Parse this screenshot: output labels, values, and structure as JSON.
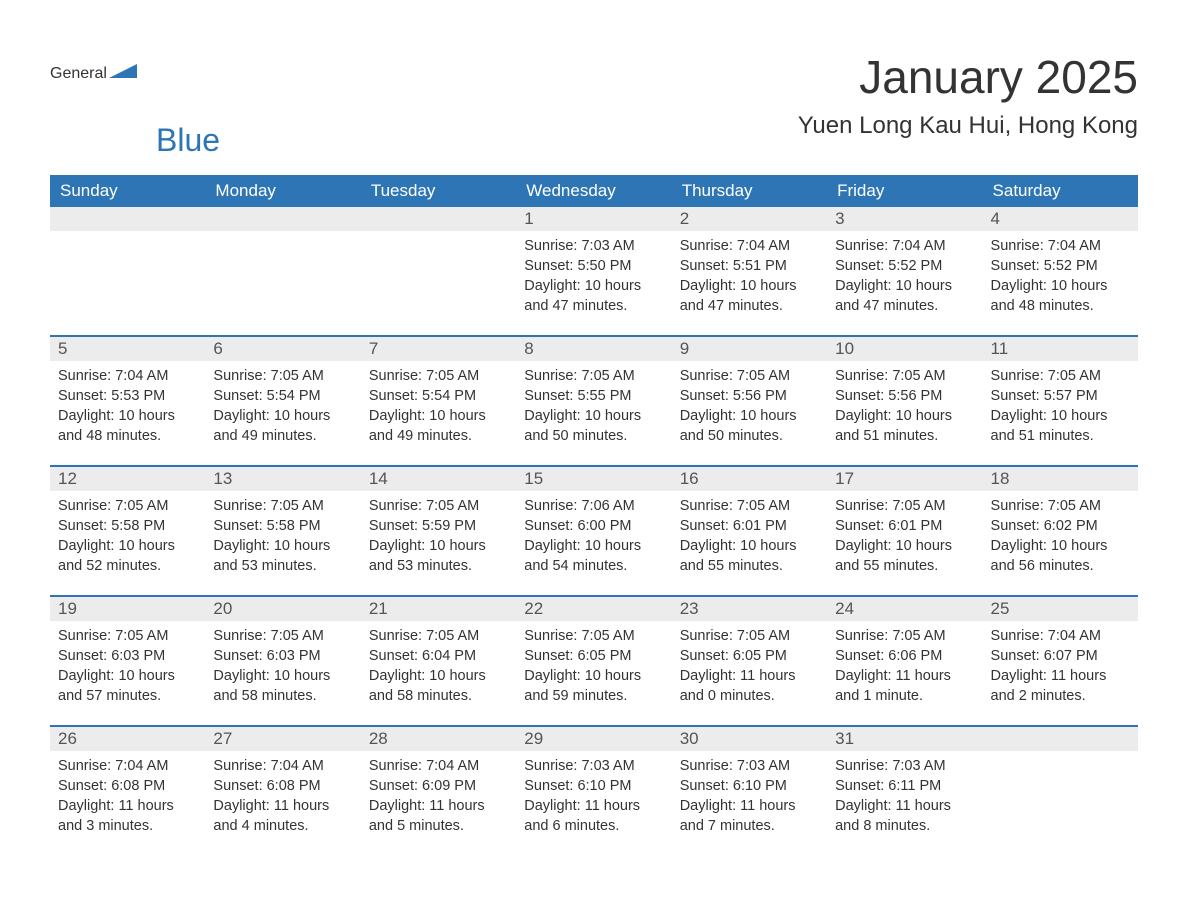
{
  "logo": {
    "general": "General",
    "blue": "Blue",
    "arrow_color": "#2e75b6"
  },
  "title": "January 2025",
  "location": "Yuen Long Kau Hui, Hong Kong",
  "colors": {
    "header_bg": "#2e75b6",
    "header_text": "#ffffff",
    "daynum_bg": "#ececec",
    "text": "#333333"
  },
  "day_headers": [
    "Sunday",
    "Monday",
    "Tuesday",
    "Wednesday",
    "Thursday",
    "Friday",
    "Saturday"
  ],
  "weeks": [
    [
      {
        "n": "",
        "sunrise": "",
        "sunset": "",
        "daylight1": "",
        "daylight2": ""
      },
      {
        "n": "",
        "sunrise": "",
        "sunset": "",
        "daylight1": "",
        "daylight2": ""
      },
      {
        "n": "",
        "sunrise": "",
        "sunset": "",
        "daylight1": "",
        "daylight2": ""
      },
      {
        "n": "1",
        "sunrise": "Sunrise: 7:03 AM",
        "sunset": "Sunset: 5:50 PM",
        "daylight1": "Daylight: 10 hours",
        "daylight2": "and 47 minutes."
      },
      {
        "n": "2",
        "sunrise": "Sunrise: 7:04 AM",
        "sunset": "Sunset: 5:51 PM",
        "daylight1": "Daylight: 10 hours",
        "daylight2": "and 47 minutes."
      },
      {
        "n": "3",
        "sunrise": "Sunrise: 7:04 AM",
        "sunset": "Sunset: 5:52 PM",
        "daylight1": "Daylight: 10 hours",
        "daylight2": "and 47 minutes."
      },
      {
        "n": "4",
        "sunrise": "Sunrise: 7:04 AM",
        "sunset": "Sunset: 5:52 PM",
        "daylight1": "Daylight: 10 hours",
        "daylight2": "and 48 minutes."
      }
    ],
    [
      {
        "n": "5",
        "sunrise": "Sunrise: 7:04 AM",
        "sunset": "Sunset: 5:53 PM",
        "daylight1": "Daylight: 10 hours",
        "daylight2": "and 48 minutes."
      },
      {
        "n": "6",
        "sunrise": "Sunrise: 7:05 AM",
        "sunset": "Sunset: 5:54 PM",
        "daylight1": "Daylight: 10 hours",
        "daylight2": "and 49 minutes."
      },
      {
        "n": "7",
        "sunrise": "Sunrise: 7:05 AM",
        "sunset": "Sunset: 5:54 PM",
        "daylight1": "Daylight: 10 hours",
        "daylight2": "and 49 minutes."
      },
      {
        "n": "8",
        "sunrise": "Sunrise: 7:05 AM",
        "sunset": "Sunset: 5:55 PM",
        "daylight1": "Daylight: 10 hours",
        "daylight2": "and 50 minutes."
      },
      {
        "n": "9",
        "sunrise": "Sunrise: 7:05 AM",
        "sunset": "Sunset: 5:56 PM",
        "daylight1": "Daylight: 10 hours",
        "daylight2": "and 50 minutes."
      },
      {
        "n": "10",
        "sunrise": "Sunrise: 7:05 AM",
        "sunset": "Sunset: 5:56 PM",
        "daylight1": "Daylight: 10 hours",
        "daylight2": "and 51 minutes."
      },
      {
        "n": "11",
        "sunrise": "Sunrise: 7:05 AM",
        "sunset": "Sunset: 5:57 PM",
        "daylight1": "Daylight: 10 hours",
        "daylight2": "and 51 minutes."
      }
    ],
    [
      {
        "n": "12",
        "sunrise": "Sunrise: 7:05 AM",
        "sunset": "Sunset: 5:58 PM",
        "daylight1": "Daylight: 10 hours",
        "daylight2": "and 52 minutes."
      },
      {
        "n": "13",
        "sunrise": "Sunrise: 7:05 AM",
        "sunset": "Sunset: 5:58 PM",
        "daylight1": "Daylight: 10 hours",
        "daylight2": "and 53 minutes."
      },
      {
        "n": "14",
        "sunrise": "Sunrise: 7:05 AM",
        "sunset": "Sunset: 5:59 PM",
        "daylight1": "Daylight: 10 hours",
        "daylight2": "and 53 minutes."
      },
      {
        "n": "15",
        "sunrise": "Sunrise: 7:06 AM",
        "sunset": "Sunset: 6:00 PM",
        "daylight1": "Daylight: 10 hours",
        "daylight2": "and 54 minutes."
      },
      {
        "n": "16",
        "sunrise": "Sunrise: 7:05 AM",
        "sunset": "Sunset: 6:01 PM",
        "daylight1": "Daylight: 10 hours",
        "daylight2": "and 55 minutes."
      },
      {
        "n": "17",
        "sunrise": "Sunrise: 7:05 AM",
        "sunset": "Sunset: 6:01 PM",
        "daylight1": "Daylight: 10 hours",
        "daylight2": "and 55 minutes."
      },
      {
        "n": "18",
        "sunrise": "Sunrise: 7:05 AM",
        "sunset": "Sunset: 6:02 PM",
        "daylight1": "Daylight: 10 hours",
        "daylight2": "and 56 minutes."
      }
    ],
    [
      {
        "n": "19",
        "sunrise": "Sunrise: 7:05 AM",
        "sunset": "Sunset: 6:03 PM",
        "daylight1": "Daylight: 10 hours",
        "daylight2": "and 57 minutes."
      },
      {
        "n": "20",
        "sunrise": "Sunrise: 7:05 AM",
        "sunset": "Sunset: 6:03 PM",
        "daylight1": "Daylight: 10 hours",
        "daylight2": "and 58 minutes."
      },
      {
        "n": "21",
        "sunrise": "Sunrise: 7:05 AM",
        "sunset": "Sunset: 6:04 PM",
        "daylight1": "Daylight: 10 hours",
        "daylight2": "and 58 minutes."
      },
      {
        "n": "22",
        "sunrise": "Sunrise: 7:05 AM",
        "sunset": "Sunset: 6:05 PM",
        "daylight1": "Daylight: 10 hours",
        "daylight2": "and 59 minutes."
      },
      {
        "n": "23",
        "sunrise": "Sunrise: 7:05 AM",
        "sunset": "Sunset: 6:05 PM",
        "daylight1": "Daylight: 11 hours",
        "daylight2": "and 0 minutes."
      },
      {
        "n": "24",
        "sunrise": "Sunrise: 7:05 AM",
        "sunset": "Sunset: 6:06 PM",
        "daylight1": "Daylight: 11 hours",
        "daylight2": "and 1 minute."
      },
      {
        "n": "25",
        "sunrise": "Sunrise: 7:04 AM",
        "sunset": "Sunset: 6:07 PM",
        "daylight1": "Daylight: 11 hours",
        "daylight2": "and 2 minutes."
      }
    ],
    [
      {
        "n": "26",
        "sunrise": "Sunrise: 7:04 AM",
        "sunset": "Sunset: 6:08 PM",
        "daylight1": "Daylight: 11 hours",
        "daylight2": "and 3 minutes."
      },
      {
        "n": "27",
        "sunrise": "Sunrise: 7:04 AM",
        "sunset": "Sunset: 6:08 PM",
        "daylight1": "Daylight: 11 hours",
        "daylight2": "and 4 minutes."
      },
      {
        "n": "28",
        "sunrise": "Sunrise: 7:04 AM",
        "sunset": "Sunset: 6:09 PM",
        "daylight1": "Daylight: 11 hours",
        "daylight2": "and 5 minutes."
      },
      {
        "n": "29",
        "sunrise": "Sunrise: 7:03 AM",
        "sunset": "Sunset: 6:10 PM",
        "daylight1": "Daylight: 11 hours",
        "daylight2": "and 6 minutes."
      },
      {
        "n": "30",
        "sunrise": "Sunrise: 7:03 AM",
        "sunset": "Sunset: 6:10 PM",
        "daylight1": "Daylight: 11 hours",
        "daylight2": "and 7 minutes."
      },
      {
        "n": "31",
        "sunrise": "Sunrise: 7:03 AM",
        "sunset": "Sunset: 6:11 PM",
        "daylight1": "Daylight: 11 hours",
        "daylight2": "and 8 minutes."
      },
      {
        "n": "",
        "sunrise": "",
        "sunset": "",
        "daylight1": "",
        "daylight2": ""
      }
    ]
  ]
}
